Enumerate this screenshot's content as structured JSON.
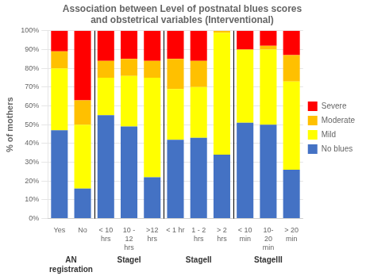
{
  "chart_data": {
    "type": "bar",
    "title": "Association between Level of postnatal blues scores\nand obstetrical variables (Interventional)",
    "ylabel": "% of mothers",
    "categories": [
      "Yes",
      "No",
      "< 10\nhrs",
      "10 -\n12\nhrs",
      ">12\nhrs",
      "< 1 hr",
      "1 - 2\nhrs",
      "> 2\nhrs",
      "< 10\nmin",
      "10-\n20\nmin",
      "> 20\nmin"
    ],
    "series": [
      {
        "name": "No blues",
        "color": "#4472C4",
        "values": [
          47,
          16,
          55,
          49,
          22,
          42,
          43,
          34,
          51,
          50,
          26
        ]
      },
      {
        "name": "Mild",
        "color": "#FFFF00",
        "values": [
          33,
          34,
          20,
          27,
          53,
          27,
          27,
          65,
          39,
          40,
          47
        ]
      },
      {
        "name": "Moderate",
        "color": "#FFC000",
        "values": [
          9,
          13,
          9,
          9,
          9,
          16,
          14,
          1,
          0,
          2,
          14
        ]
      },
      {
        "name": "Severe",
        "color": "#FF0000",
        "values": [
          11,
          37,
          16,
          15,
          16,
          15,
          16,
          0,
          10,
          8,
          13
        ]
      }
    ],
    "annotations": [
      {
        "text": "AN\nregistration",
        "categories": [
          "Yes",
          "No"
        ]
      },
      {
        "text": "StageI",
        "categories": [
          "< 10\nhrs",
          "10 -\n12\nhrs",
          ">12\nhrs"
        ]
      },
      {
        "text": "StageII",
        "categories": [
          "< 1 hr",
          "1 - 2\nhrs",
          "> 2\nhrs"
        ]
      },
      {
        "text": "StageIII",
        "categories": [
          "< 10\nmin",
          "10-\n20\nmin",
          "> 20\nmin"
        ]
      }
    ],
    "ylim": [
      0,
      100
    ],
    "yticks": [
      {
        "value": 0,
        "label": "0%"
      },
      {
        "value": 10,
        "label": "10%"
      },
      {
        "value": 20,
        "label": "20%"
      },
      {
        "value": 30,
        "label": "30%"
      },
      {
        "value": 40,
        "label": "40%"
      },
      {
        "value": 50,
        "label": "50%"
      },
      {
        "value": 60,
        "label": "60%"
      },
      {
        "value": 70,
        "label": "70%"
      },
      {
        "value": 80,
        "label": "80%"
      },
      {
        "value": 90,
        "label": "90%"
      },
      {
        "value": 100,
        "label": "100%"
      }
    ],
    "stacked": true,
    "grid": true,
    "legend": "right"
  }
}
